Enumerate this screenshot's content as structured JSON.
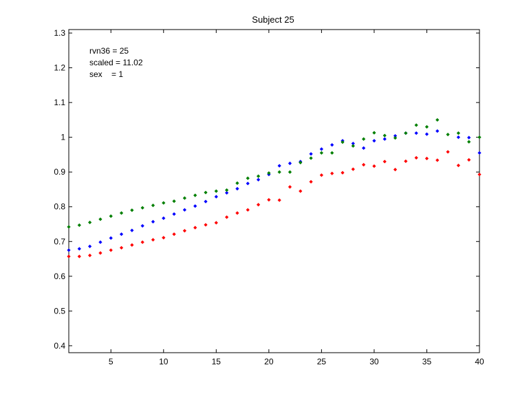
{
  "chart_data": {
    "type": "scatter",
    "title": "Subject 25",
    "xlabel": "",
    "ylabel": "",
    "xlim": [
      1,
      40
    ],
    "ylim": [
      0.38,
      1.31
    ],
    "xticks": [
      5,
      10,
      15,
      20,
      25,
      30,
      35,
      40
    ],
    "yticks": [
      0.4,
      0.5,
      0.6,
      0.7,
      0.8,
      0.9,
      1,
      1.1,
      1.2,
      1.3
    ],
    "ytick_labels": [
      "0.4",
      "0.5",
      "0.6",
      "0.7",
      "0.8",
      "0.9",
      "1",
      "1.1",
      "1.2",
      "1.3"
    ],
    "grid": false,
    "annotations": [
      "rvn36 = 25",
      "scaled = 11.02",
      "sex    = 1"
    ],
    "series": [
      {
        "color": "#0000ff",
        "x": [
          1,
          2,
          3,
          4,
          5,
          6,
          7,
          8,
          9,
          10,
          11,
          12,
          13,
          14,
          15,
          16,
          17,
          18,
          19,
          20,
          21,
          22,
          23,
          24,
          25,
          26,
          27,
          28,
          29,
          30,
          31,
          32,
          33,
          34,
          35,
          36,
          37,
          38,
          39,
          40
        ],
        "values": [
          0.675,
          0.679,
          0.686,
          0.698,
          0.71,
          0.721,
          0.732,
          0.745,
          0.757,
          0.767,
          0.779,
          0.791,
          0.802,
          0.815,
          0.829,
          0.84,
          0.852,
          0.867,
          0.878,
          0.893,
          0.918,
          0.925,
          0.93,
          0.952,
          0.966,
          0.978,
          0.99,
          0.982,
          0.969,
          0.99,
          0.995,
          1.004,
          1.012,
          1.012,
          1.009,
          1.018,
          null,
          1.0,
          0.999,
          0.955
        ]
      },
      {
        "color": "#ff0000",
        "x": [
          1,
          2,
          3,
          4,
          5,
          6,
          7,
          8,
          9,
          10,
          11,
          12,
          13,
          14,
          15,
          16,
          17,
          18,
          19,
          20,
          21,
          22,
          23,
          24,
          25,
          26,
          27,
          28,
          29,
          30,
          31,
          32,
          33,
          34,
          35,
          36,
          37,
          38,
          39,
          40
        ],
        "values": [
          0.657,
          0.657,
          0.66,
          0.667,
          0.675,
          0.682,
          0.69,
          0.698,
          0.705,
          0.711,
          0.721,
          0.731,
          0.74,
          0.748,
          0.754,
          0.77,
          0.782,
          0.791,
          0.806,
          0.82,
          0.819,
          0.857,
          0.845,
          0.872,
          0.891,
          0.896,
          0.898,
          0.908,
          0.921,
          0.917,
          0.93,
          0.907,
          0.931,
          0.941,
          0.939,
          0.934,
          0.958,
          0.919,
          0.935,
          0.893
        ]
      },
      {
        "color": "#007f00",
        "x": [
          1,
          2,
          3,
          4,
          5,
          6,
          7,
          8,
          9,
          10,
          11,
          12,
          13,
          14,
          15,
          16,
          17,
          18,
          19,
          20,
          21,
          22,
          23,
          24,
          25,
          26,
          27,
          28,
          29,
          30,
          31,
          32,
          33,
          34,
          35,
          36,
          37,
          38,
          39,
          40
        ],
        "values": [
          0.742,
          0.747,
          0.755,
          0.764,
          0.773,
          0.782,
          0.79,
          0.797,
          0.804,
          0.811,
          0.816,
          0.825,
          0.833,
          0.841,
          0.845,
          0.848,
          0.868,
          0.882,
          0.888,
          0.897,
          0.9,
          0.9,
          0.927,
          0.94,
          0.955,
          0.955,
          0.986,
          0.975,
          0.995,
          1.013,
          1.005,
          0.998,
          1.012,
          1.035,
          1.03,
          1.05,
          1.008,
          1.012,
          0.987,
          1.0
        ]
      }
    ]
  }
}
